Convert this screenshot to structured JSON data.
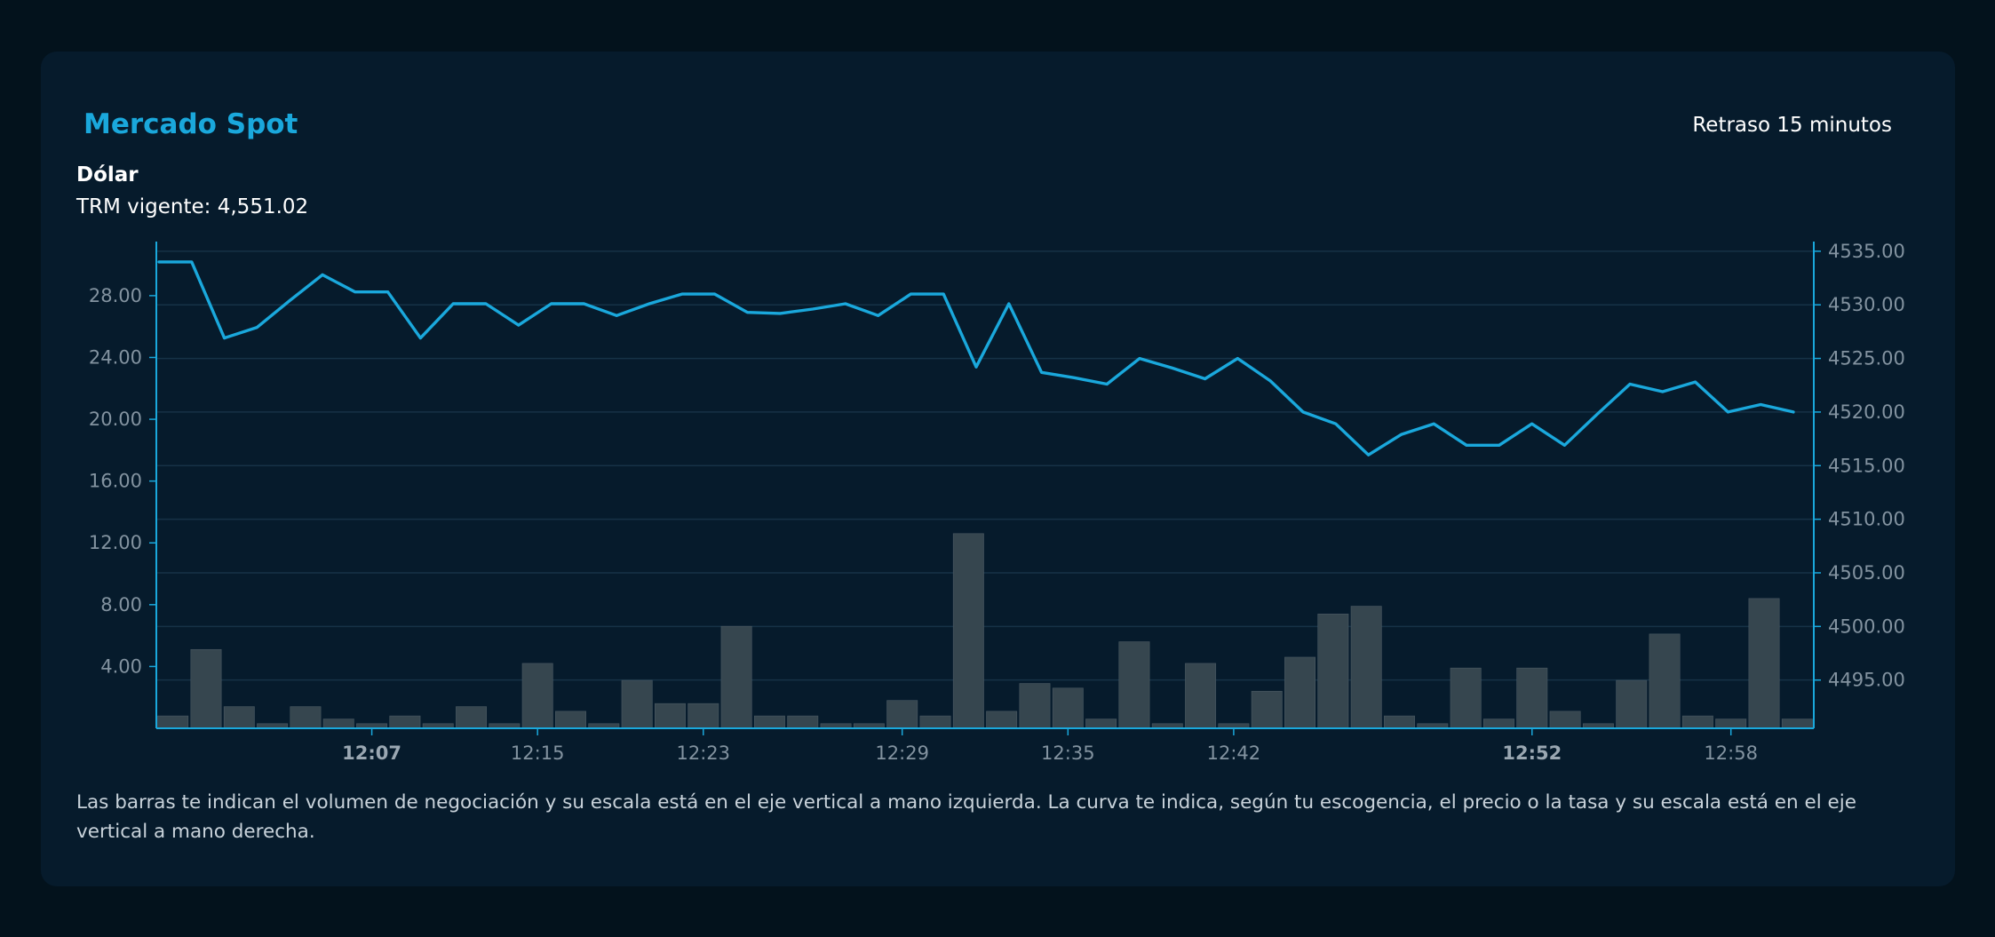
{
  "header": {
    "title": "Mercado Spot",
    "delay_label": "Retraso 15 minutos",
    "asset_label": "Dólar",
    "trm_label": "TRM vigente: 4,551.02"
  },
  "footer": {
    "note": "Las barras te indican el volumen de negociación y su escala está en el eje vertical a mano izquierda. La curva te indica, según tu escogencia, el precio o la tasa y su escala está en el eje vertical a mano derecha."
  },
  "colors": {
    "price_line": "#1aa8dc",
    "volume_bars": "#36464f",
    "axis": "#1aa8dc",
    "grid": "#163246",
    "tick_text": "#8393a0",
    "tick_text_bold": "#9aa7b2"
  },
  "chart_data": {
    "type": "bar+line",
    "grid": true,
    "x_ticks": [
      {
        "label": "12:07",
        "index": 6,
        "bold": true
      },
      {
        "label": "12:15",
        "index": 11,
        "bold": false
      },
      {
        "label": "12:23",
        "index": 16,
        "bold": false
      },
      {
        "label": "12:29",
        "index": 22,
        "bold": false
      },
      {
        "label": "12:35",
        "index": 27,
        "bold": false
      },
      {
        "label": "12:42",
        "index": 32,
        "bold": false
      },
      {
        "label": "12:52",
        "index": 41,
        "bold": true
      },
      {
        "label": "12:58",
        "index": 47,
        "bold": false
      }
    ],
    "left_axis": {
      "min": 0,
      "max": 31.5,
      "ticks": [
        "4.00",
        "8.00",
        "12.00",
        "16.00",
        "20.00",
        "24.00",
        "28.00"
      ],
      "tick_values": [
        4,
        8,
        12,
        16,
        20,
        24,
        28
      ]
    },
    "right_axis": {
      "min": 4490.5,
      "max": 4535.9,
      "ticks": [
        "4495.00",
        "4500.00",
        "4505.00",
        "4510.00",
        "4515.00",
        "4520.00",
        "4525.00",
        "4530.00",
        "4535.00"
      ],
      "tick_values": [
        4495,
        4500,
        4505,
        4510,
        4515,
        4520,
        4525,
        4530,
        4535
      ]
    },
    "series": [
      {
        "kind": "bar",
        "axis": "left",
        "values": [
          0.8,
          5.1,
          1.4,
          0.3,
          1.4,
          0.6,
          0.3,
          0.8,
          0.3,
          1.4,
          0.3,
          4.2,
          1.1,
          0.3,
          3.1,
          1.6,
          1.6,
          6.6,
          0.8,
          0.8,
          0.3,
          0.3,
          1.8,
          0.8,
          12.6,
          1.1,
          2.9,
          2.6,
          0.6,
          5.6,
          0.3,
          4.2,
          0.3,
          2.4,
          4.6,
          7.4,
          7.9,
          0.8,
          0.3,
          3.9,
          0.6,
          3.9,
          1.1,
          0.3,
          3.1,
          6.1,
          0.8,
          0.6,
          8.4,
          0.6
        ]
      },
      {
        "kind": "line",
        "axis": "right",
        "start_x": 0,
        "values": [
          4534.0,
          4534.0,
          4526.9,
          4527.9,
          4530.4,
          4532.8,
          4531.2,
          4531.2,
          4526.9,
          4530.1,
          4530.1,
          4528.1,
          4530.1,
          4530.1,
          4529.0,
          4530.1,
          4531.0,
          4531.0,
          4529.3,
          4529.2,
          4529.6,
          4530.1,
          4529.0,
          4531.0,
          4531.0,
          4524.2,
          4530.1,
          4523.7,
          4523.2,
          4522.6,
          4525.0,
          4524.1,
          4523.1,
          4525.0,
          4522.9,
          4520.0,
          4518.9,
          4516.0,
          4517.9,
          4518.9,
          4516.9,
          4516.9,
          4518.9,
          4516.9,
          4519.8,
          4522.6,
          4521.9,
          4522.8,
          4520.0,
          4520.7,
          4520.0
        ]
      }
    ]
  }
}
